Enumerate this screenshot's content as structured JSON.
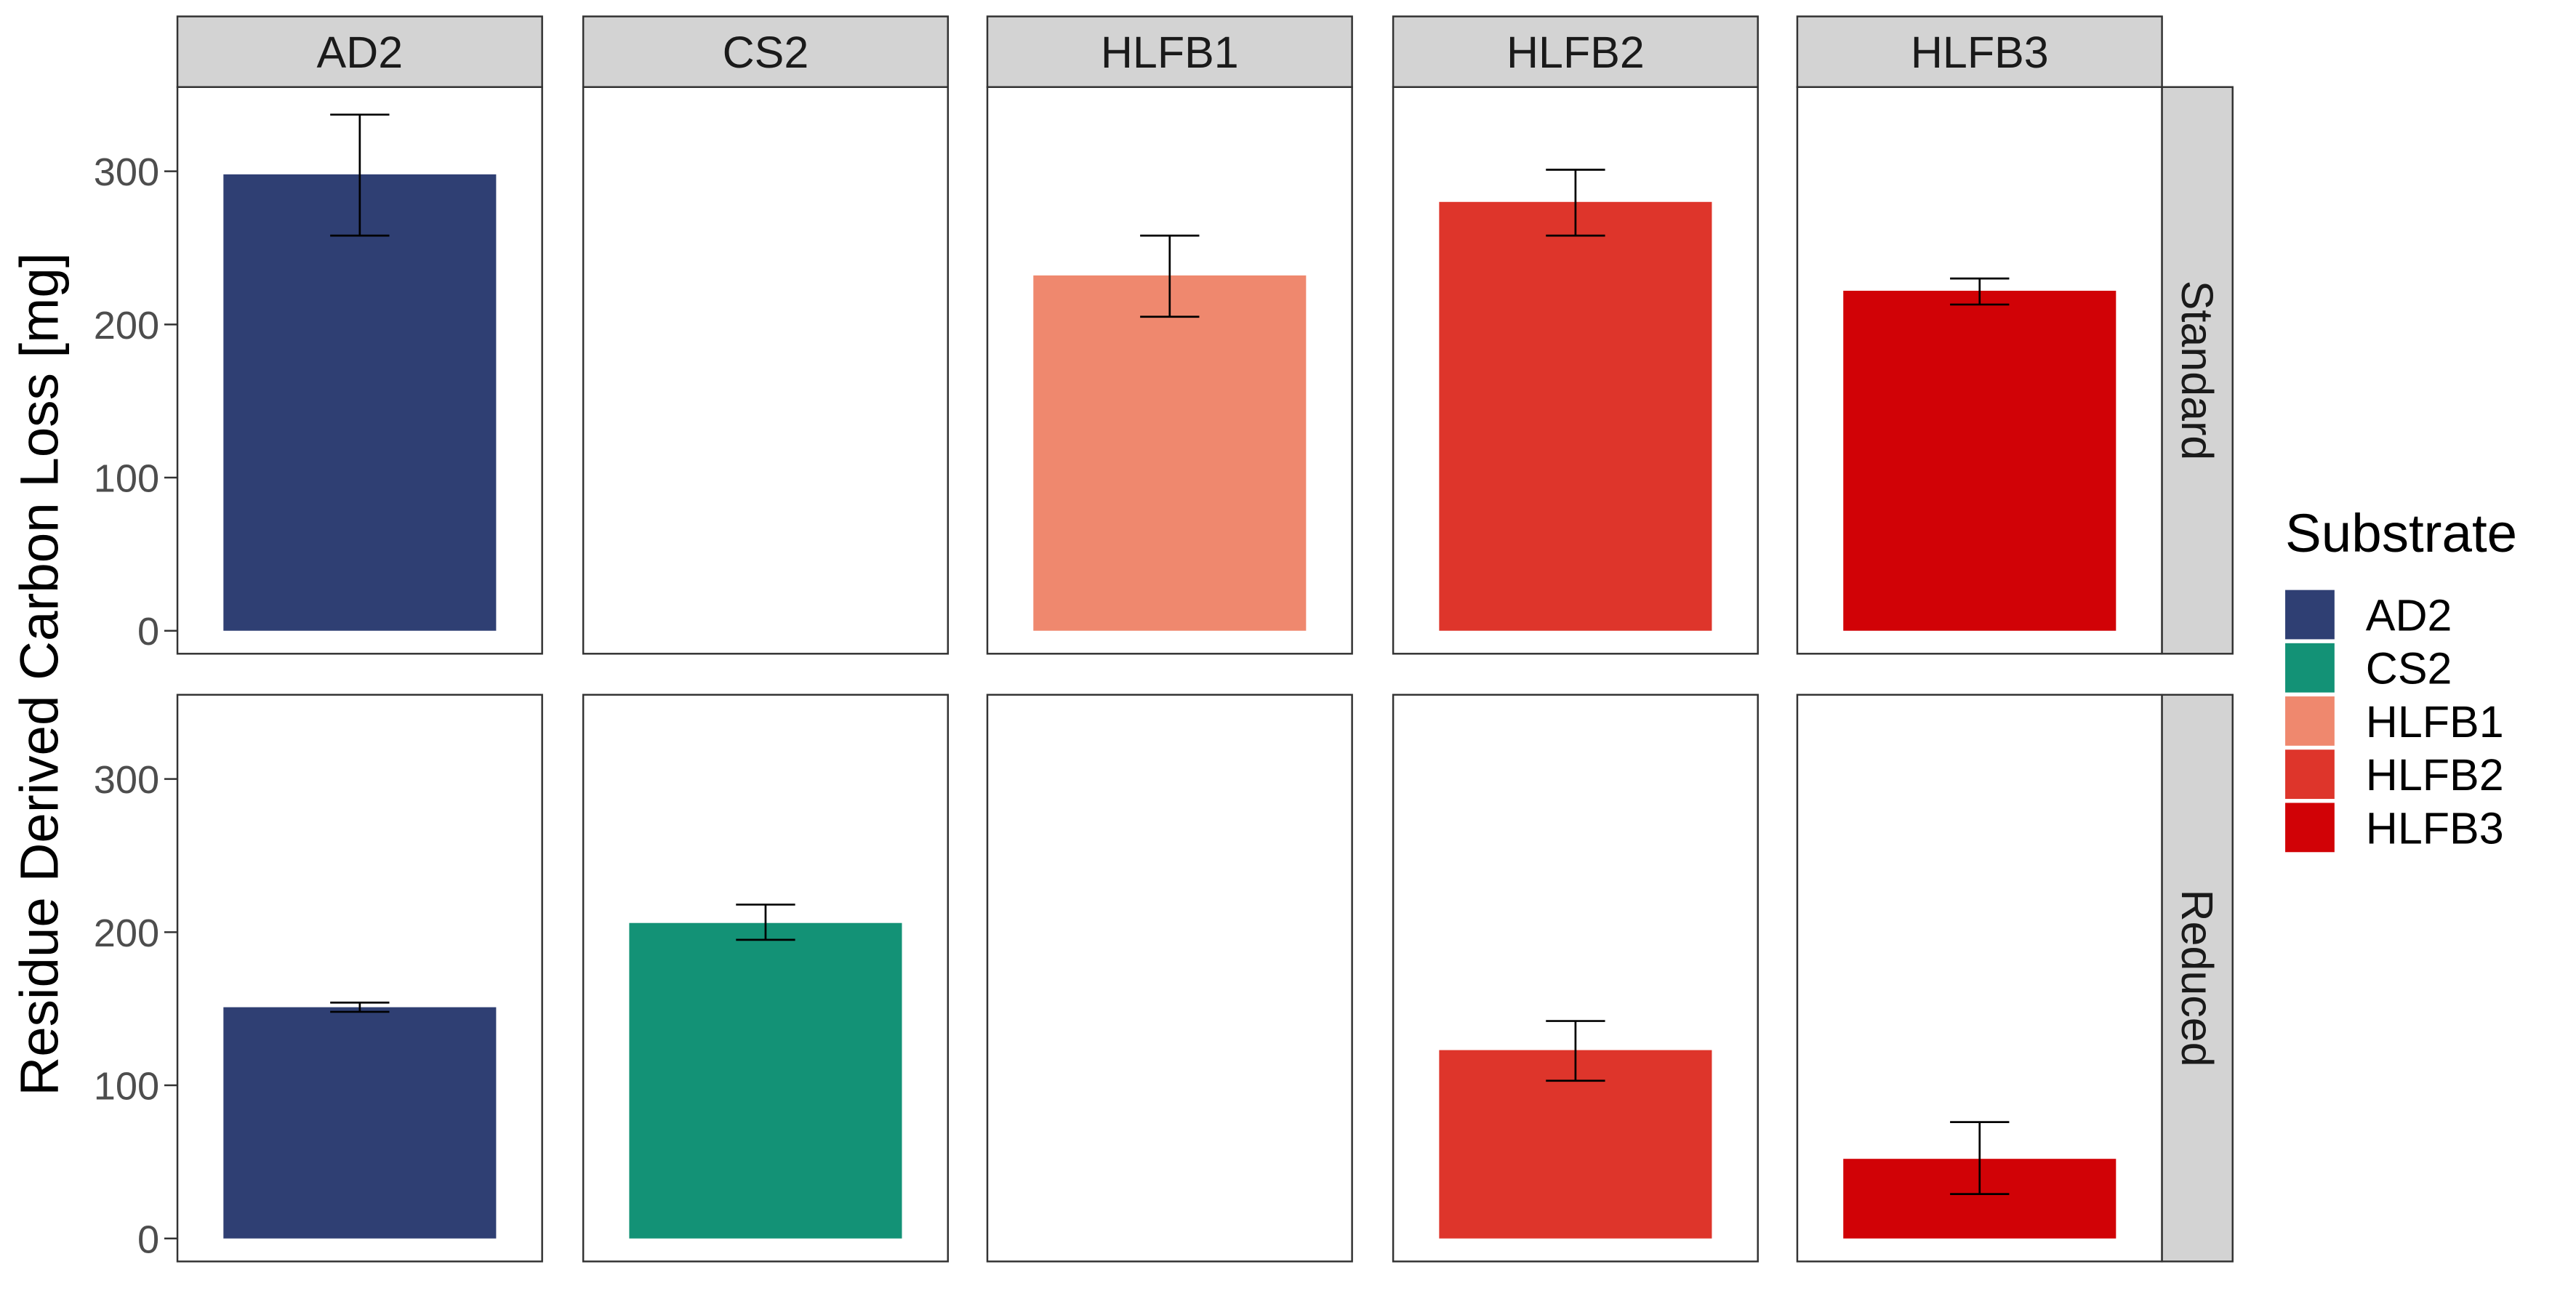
{
  "chart_data": {
    "type": "bar",
    "ylabel": "Residue Derived Carbon Loss [mg]",
    "ylim": [
      -15,
      355
    ],
    "y_ticks": [
      0,
      100,
      200,
      300
    ],
    "columns": [
      "AD2",
      "CS2",
      "HLFB1",
      "HLFB2",
      "HLFB3"
    ],
    "rows": [
      "Standard",
      "Reduced"
    ],
    "grid": false,
    "legend": {
      "title": "Substrate",
      "position": "right",
      "entries": [
        {
          "label": "AD2",
          "color": "#2F3F73"
        },
        {
          "label": "CS2",
          "color": "#139276"
        },
        {
          "label": "HLFB1",
          "color": "#EF886E"
        },
        {
          "label": "HLFB2",
          "color": "#DE352B"
        },
        {
          "label": "HLFB3",
          "color": "#D10206"
        }
      ]
    },
    "colors": {
      "AD2": "#2F3F73",
      "CS2": "#139276",
      "HLFB1": "#EF886E",
      "HLFB2": "#DE352B",
      "HLFB3": "#D10206",
      "strip_bg": "#D3D3D3",
      "text": "#000000",
      "tick_text": "#4D4D4D"
    },
    "series": [
      {
        "row": "Standard",
        "column": "AD2",
        "value": 298,
        "err_low": 258,
        "err_high": 337
      },
      {
        "row": "Standard",
        "column": "HLFB1",
        "value": 232,
        "err_low": 205,
        "err_high": 258
      },
      {
        "row": "Standard",
        "column": "HLFB2",
        "value": 280,
        "err_low": 258,
        "err_high": 301
      },
      {
        "row": "Standard",
        "column": "HLFB3",
        "value": 222,
        "err_low": 213,
        "err_high": 230
      },
      {
        "row": "Reduced",
        "column": "AD2",
        "value": 151,
        "err_low": 148,
        "err_high": 154
      },
      {
        "row": "Reduced",
        "column": "CS2",
        "value": 206,
        "err_low": 195,
        "err_high": 218
      },
      {
        "row": "Reduced",
        "column": "HLFB2",
        "value": 123,
        "err_low": 103,
        "err_high": 142
      },
      {
        "row": "Reduced",
        "column": "HLFB3",
        "value": 52,
        "err_low": 29,
        "err_high": 76
      }
    ]
  }
}
